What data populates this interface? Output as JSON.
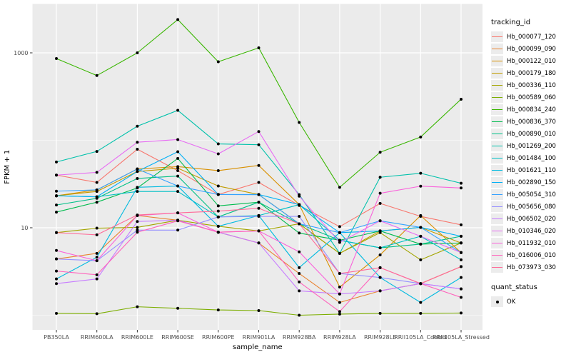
{
  "figure": {
    "background": "#FFFFFF",
    "panel_background": "#EBEBEB",
    "grid_color": "#FFFFFF",
    "tick_label_color": "#4D4D4D",
    "axis_title_color": "#000000",
    "point_color": "#000000"
  },
  "legend": {
    "tracking_title": "tracking_id",
    "quant_title": "quant_status",
    "quant_ok_label": "OK"
  },
  "chart_data": {
    "type": "line",
    "title": "",
    "xlabel": "sample_name",
    "ylabel": "FPKM + 1",
    "y_scale": "log10",
    "grid": true,
    "legend_position": "right",
    "y_ticks": [
      {
        "value": 10,
        "label": "10"
      },
      {
        "value": 1000,
        "label": "1000"
      }
    ],
    "y_minor_breaks": [
      1,
      100
    ],
    "ylim": [
      0.7,
      3500
    ],
    "categories": [
      "PB350LA",
      "RRIM600LA",
      "RRIM600LE",
      "RRIM600SE",
      "RRIM600PE",
      "RRIM901LA",
      "RRIM928BA",
      "RRIM928LA",
      "RRIM928LE",
      "RRII105LA_Control",
      "RRII105LA_Stressed"
    ],
    "series": [
      {
        "name": "Hb_000077_120",
        "color": "#F8766D",
        "values": [
          40,
          33,
          79,
          45,
          24,
          33,
          18,
          10.3,
          19,
          13.5,
          10.8
        ]
      },
      {
        "name": "Hb_000099_090",
        "color": "#EA8331",
        "values": [
          4.4,
          5.1,
          13.8,
          12.2,
          8.9,
          6.7,
          3.0,
          1.4,
          1.9,
          2.3,
          3.6
        ]
      },
      {
        "name": "Hb_000122_010",
        "color": "#D89000",
        "values": [
          23.2,
          27.1,
          47,
          50,
          45,
          51.6,
          18.4,
          2.1,
          4.9,
          13.8,
          5.2
        ]
      },
      {
        "name": "Hb_000179_180",
        "color": "#C09B00",
        "values": [
          23.2,
          26,
          44,
          48,
          30,
          24,
          11.1,
          5.1,
          9.2,
          10.1,
          6.7
        ]
      },
      {
        "name": "Hb_000336_110",
        "color": "#A3A500",
        "values": [
          8.8,
          9.9,
          10.1,
          12.2,
          10.4,
          9.2,
          11.1,
          5.1,
          8.8,
          4.3,
          6.7
        ]
      },
      {
        "name": "Hb_000589_060",
        "color": "#7CAE00",
        "values": [
          1.05,
          1.04,
          1.25,
          1.2,
          1.15,
          1.13,
          1.0,
          1.03,
          1.05,
          1.05,
          1.06
        ]
      },
      {
        "name": "Hb_000834_240",
        "color": "#39B600",
        "values": [
          860,
          550,
          1000,
          2400,
          790,
          1140,
          160,
          29,
          73,
          109,
          295
        ]
      },
      {
        "name": "Hb_000836_370",
        "color": "#00BB4E",
        "values": [
          15.1,
          19.6,
          28.5,
          62,
          17.8,
          19.6,
          8.7,
          7.2,
          9.2,
          6.5,
          6.7
        ]
      },
      {
        "name": "Hb_000890_010",
        "color": "#00C087",
        "values": [
          18.2,
          21.7,
          36.6,
          39,
          13.3,
          19.6,
          11.1,
          7.2,
          5.9,
          6.5,
          8.0
        ]
      },
      {
        "name": "Hb_001269_200",
        "color": "#00C1AB",
        "values": [
          56.5,
          74.6,
          145,
          220,
          91,
          89,
          23.9,
          5.1,
          37.8,
          42,
          32.3
        ]
      },
      {
        "name": "Hb_001484_100",
        "color": "#00BFC4",
        "values": [
          23.2,
          22.6,
          26,
          26,
          13.3,
          13.8,
          18.4,
          7.2,
          5.9,
          8.0,
          4.3
        ]
      },
      {
        "name": "Hb_001621_110",
        "color": "#00BAE0",
        "values": [
          2.6,
          4.6,
          29,
          30,
          10.4,
          13.8,
          3.5,
          8.8,
          2.7,
          1.4,
          2.7
        ]
      },
      {
        "name": "Hb_002890_150",
        "color": "#00B0F6",
        "values": [
          23.2,
          22.6,
          44,
          74,
          24,
          24,
          18.4,
          8.8,
          9.2,
          10.1,
          8.0
        ]
      },
      {
        "name": "Hb_005054_310",
        "color": "#35A2FF",
        "values": [
          26.2,
          27.1,
          47,
          30,
          24,
          23.9,
          11.1,
          8.8,
          12,
          10.1,
          5.2
        ]
      },
      {
        "name": "Hb_005656_080",
        "color": "#9590FF",
        "values": [
          4.4,
          4.2,
          9.4,
          9.4,
          13.3,
          13.5,
          13.5,
          3.0,
          2.7,
          2.3,
          2.0
        ]
      },
      {
        "name": "Hb_006502_020",
        "color": "#C77CFF",
        "values": [
          2.3,
          2.6,
          11.8,
          12.2,
          8.9,
          6.7,
          1.9,
          1.75,
          1.9,
          2.3,
          2.0
        ]
      },
      {
        "name": "Hb_010346_020",
        "color": "#E76BF3",
        "values": [
          40,
          43,
          95,
          102,
          70,
          126,
          23,
          6.8,
          12,
          8,
          5.2
        ]
      },
      {
        "name": "Hb_011932_010",
        "color": "#FA62DB",
        "values": [
          5.5,
          4.2,
          13.8,
          14.8,
          8.9,
          9.2,
          5.3,
          1.75,
          24.8,
          29.9,
          28.5
        ]
      },
      {
        "name": "Hb_016006_010",
        "color": "#FF62BC",
        "values": [
          3.2,
          2.9,
          8.9,
          12,
          8.9,
          9.2,
          2.4,
          1.1,
          3.5,
          2.3,
          1.6
        ]
      },
      {
        "name": "Hb_073973_030",
        "color": "#FF6A98",
        "values": [
          8.8,
          8.3,
          14,
          14.8,
          15.5,
          16.7,
          11.1,
          3.0,
          3.5,
          2.3,
          3.6
        ]
      }
    ]
  }
}
